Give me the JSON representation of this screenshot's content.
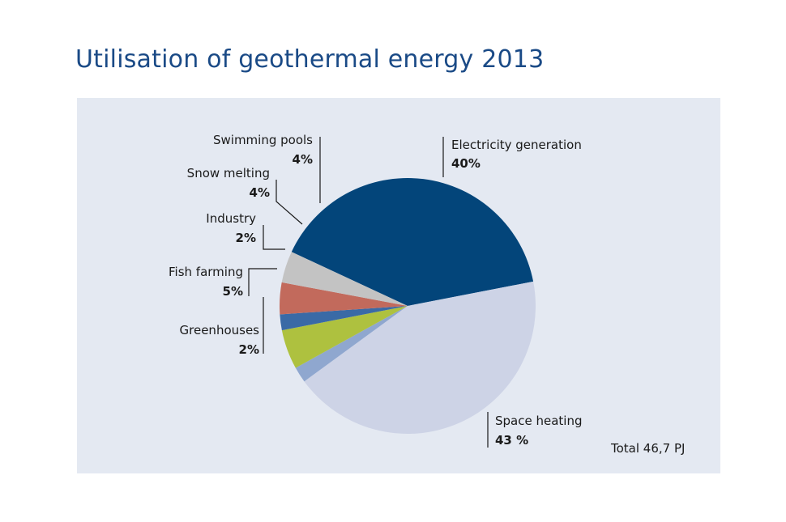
{
  "title": "Utilisation of geothermal energy 2013",
  "total_label": "Total 46,7 PJ",
  "chart_data": {
    "type": "pie",
    "title": "Utilisation of geothermal energy 2013",
    "slices": [
      {
        "name": "Electricity generation",
        "value": 40,
        "label": "40%",
        "color": "#03457a"
      },
      {
        "name": "Space heating",
        "value": 43,
        "label": "43 %",
        "color": "#cdd3e6"
      },
      {
        "name": "Greenhouses",
        "value": 2,
        "label": "2%",
        "color": "#8fa7cf"
      },
      {
        "name": "Fish farming",
        "value": 5,
        "label": "5%",
        "color": "#aec13f"
      },
      {
        "name": "Industry",
        "value": 2,
        "label": "2%",
        "color": "#3a6aa6"
      },
      {
        "name": "Snow melting",
        "value": 4,
        "label": "4%",
        "color": "#c26a5c"
      },
      {
        "name": "Swimming pools",
        "value": 4,
        "label": "4%",
        "color": "#c3c3c3"
      }
    ],
    "annotation": "Total 46,7 PJ"
  }
}
